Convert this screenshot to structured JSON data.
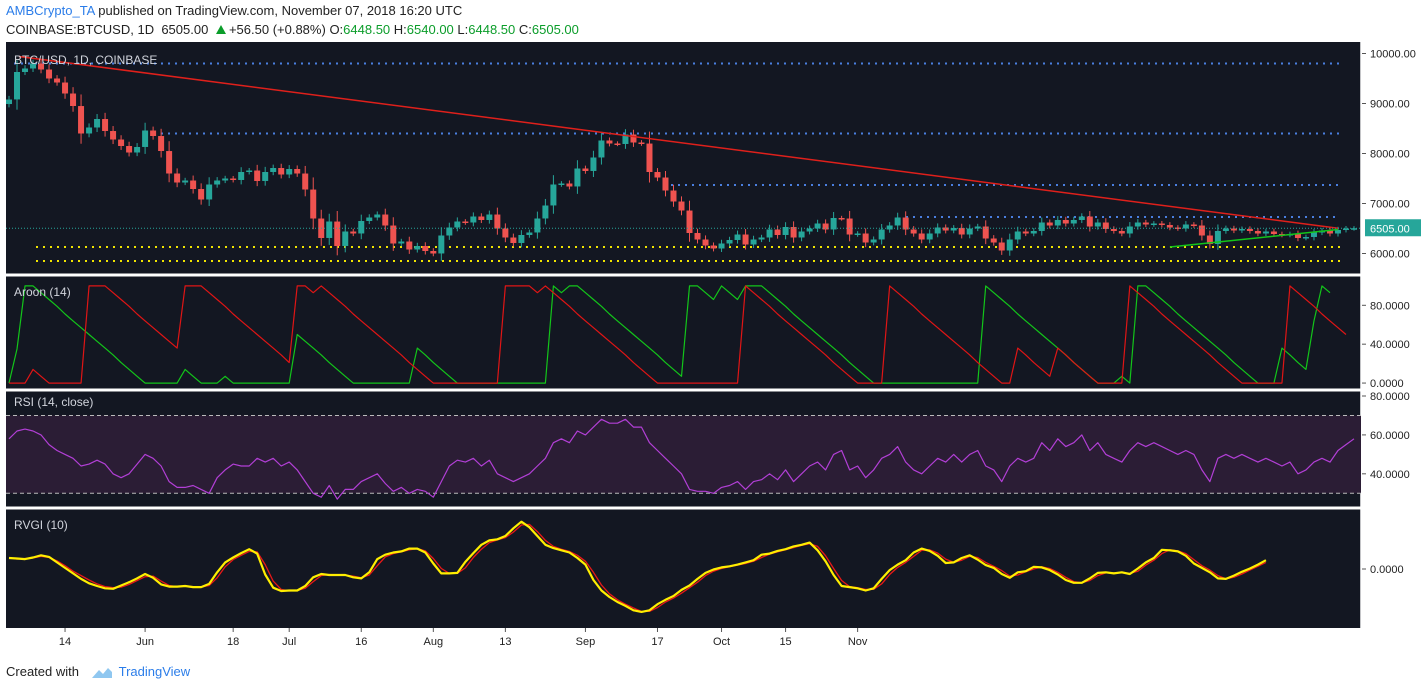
{
  "header": {
    "author": "AMBCrypto_TA",
    "published": "published on TradingView.com, November 07, 2018 16:20 UTC",
    "symbol": "COINBASE:BTCUSD, 1D",
    "last": "6505.00",
    "change": "+56.50 (+0.88%)",
    "o_label": "O:",
    "o_value": "6448.50",
    "h_label": "H:",
    "h_value": "6540.00",
    "l_label": "L:",
    "l_value": "6448.50",
    "c_label": "C:",
    "c_value": "6505.00"
  },
  "footer": {
    "created_with": "Created with",
    "brand": "TradingView",
    "logo_icon": "tradingview-logo-icon"
  },
  "colors": {
    "bull": "#26a69a",
    "bear": "#ef5350",
    "trend": "#e0201b",
    "support": "#f0e400",
    "resistance": "#4a7fe0",
    "aroon_up": "#13c51a",
    "aroon_down": "#e01515",
    "rsi": "#b23fd6",
    "rsi_band": "#2b1d35",
    "rvgi": "#ffee00",
    "rvgi_signal": "#e81818",
    "bg": "#131722"
  },
  "chart_data": [
    {
      "type": "candlestick",
      "title": "BTC/USD, 1D, COINBASE",
      "ylim": [
        5650,
        10150
      ],
      "yticks": [
        "10000.00",
        "9000.00",
        "8000.00",
        "7000.00",
        "6000.00"
      ],
      "ytick_values": [
        10000,
        9000,
        8000,
        7000,
        6000
      ],
      "price_label": "6505.00",
      "price_value": 6505,
      "x_ticks": [
        "14",
        "Jun",
        "18",
        "Jul",
        "16",
        "Aug",
        "13",
        "Sep",
        "17",
        "Oct",
        "15",
        "Nov"
      ],
      "x_tick_index": [
        7,
        17,
        28,
        35,
        44,
        53,
        62,
        72,
        81,
        89,
        97,
        106
      ],
      "closes": [
        9080,
        9630,
        9700,
        9800,
        9680,
        9500,
        9420,
        9200,
        8950,
        8400,
        8520,
        8690,
        8450,
        8280,
        8150,
        8020,
        8130,
        8460,
        8350,
        8050,
        7600,
        7420,
        7460,
        7290,
        7080,
        7380,
        7460,
        7500,
        7470,
        7630,
        7660,
        7450,
        7630,
        7710,
        7580,
        7690,
        7600,
        7280,
        6700,
        6310,
        6640,
        6150,
        6440,
        6400,
        6650,
        6720,
        6780,
        6560,
        6200,
        6240,
        6080,
        6150,
        6050,
        6000,
        6360,
        6520,
        6640,
        6620,
        6740,
        6670,
        6780,
        6500,
        6320,
        6210,
        6370,
        6420,
        6700,
        6960,
        7380,
        7400,
        7340,
        7700,
        7650,
        7920,
        8260,
        8200,
        8190,
        8380,
        8220,
        8200,
        7630,
        7520,
        7260,
        7040,
        6860,
        6410,
        6280,
        6160,
        6100,
        6200,
        6270,
        6380,
        6180,
        6280,
        6320,
        6480,
        6370,
        6530,
        6320,
        6440,
        6500,
        6600,
        6480,
        6710,
        6700,
        6380,
        6400,
        6220,
        6280,
        6480,
        6560,
        6720,
        6480,
        6400,
        6280,
        6400,
        6520,
        6460,
        6510,
        6380,
        6500,
        6540,
        6300,
        6220,
        6060,
        6280,
        6440,
        6400,
        6450,
        6620,
        6560,
        6670,
        6600,
        6670,
        6740,
        6540,
        6620,
        6490,
        6450,
        6400,
        6540,
        6620,
        6580,
        6600,
        6570,
        6520,
        6500,
        6580,
        6560,
        6360,
        6190,
        6450,
        6500,
        6460,
        6490,
        6450,
        6400,
        6440,
        6390,
        6370,
        6390,
        6310,
        6330,
        6420,
        6460,
        6400,
        6470,
        6500,
        6505
      ],
      "trend_line": [
        {
          "x": 0,
          "y": 9900
        },
        {
          "x": 166,
          "y": 6505
        }
      ],
      "resistance_levels": [
        9800,
        8400,
        7370,
        6730
      ],
      "support_levels": [
        6130,
        5850
      ]
    },
    {
      "type": "line",
      "title": "Aroon (14)",
      "ylim": [
        -2,
        105
      ],
      "yticks": [
        "80.0000",
        "40.0000",
        "0.0000"
      ],
      "ytick_values": [
        80,
        40,
        0
      ],
      "series": [
        {
          "name": "up",
          "values": [
            0,
            35,
            100,
            100,
            93,
            86,
            79,
            71,
            64,
            57,
            50,
            43,
            36,
            29,
            21,
            14,
            7,
            0,
            0,
            0,
            0,
            0,
            14,
            7,
            0,
            0,
            0,
            7,
            0,
            0,
            0,
            0,
            0,
            0,
            0,
            0,
            50,
            43,
            36,
            29,
            21,
            14,
            7,
            0,
            0,
            0,
            0,
            0,
            0,
            0,
            0,
            36,
            29,
            21,
            14,
            7,
            0,
            0,
            0,
            0,
            0,
            0,
            0,
            0,
            0,
            0,
            0,
            0,
            100,
            93,
            100,
            100,
            93,
            86,
            79,
            71,
            64,
            57,
            50,
            43,
            36,
            29,
            21,
            14,
            7,
            100,
            100,
            93,
            86,
            100,
            93,
            86,
            100,
            100,
            100,
            93,
            86,
            79,
            71,
            64,
            57,
            50,
            43,
            36,
            29,
            21,
            14,
            7,
            0,
            0,
            0,
            0,
            0,
            0,
            0,
            0,
            0,
            0,
            0,
            0,
            0,
            0,
            100,
            93,
            86,
            79,
            71,
            64,
            57,
            50,
            43,
            36,
            29,
            21,
            14,
            7,
            0,
            0,
            0,
            7,
            0,
            100,
            100,
            93,
            86,
            79,
            71,
            64,
            57,
            50,
            43,
            36,
            29,
            21,
            14,
            7,
            0,
            0,
            0,
            36,
            29,
            21,
            14,
            64,
            100,
            93
          ]
        },
        {
          "name": "down",
          "values": [
            0,
            0,
            0,
            14,
            7,
            0,
            0,
            0,
            0,
            0,
            100,
            100,
            100,
            93,
            86,
            79,
            71,
            64,
            57,
            50,
            43,
            36,
            100,
            100,
            100,
            93,
            86,
            79,
            71,
            64,
            57,
            50,
            43,
            36,
            29,
            21,
            100,
            100,
            93,
            100,
            93,
            86,
            79,
            71,
            64,
            57,
            50,
            43,
            36,
            29,
            21,
            14,
            7,
            0,
            0,
            0,
            0,
            0,
            0,
            0,
            0,
            0,
            100,
            100,
            100,
            100,
            93,
            100,
            93,
            86,
            79,
            71,
            64,
            57,
            50,
            43,
            36,
            29,
            21,
            14,
            7,
            0,
            0,
            0,
            0,
            0,
            0,
            0,
            0,
            0,
            0,
            0,
            100,
            93,
            86,
            79,
            71,
            64,
            57,
            50,
            43,
            36,
            29,
            21,
            14,
            7,
            0,
            0,
            0,
            0,
            100,
            93,
            86,
            79,
            71,
            64,
            57,
            50,
            43,
            36,
            29,
            21,
            14,
            7,
            0,
            0,
            36,
            29,
            21,
            14,
            7,
            36,
            29,
            21,
            14,
            7,
            0,
            0,
            0,
            0,
            100,
            93,
            86,
            79,
            71,
            64,
            57,
            50,
            43,
            36,
            29,
            21,
            14,
            7,
            0,
            0,
            0,
            0,
            0,
            0,
            100,
            93,
            86,
            79,
            71,
            64,
            57,
            50
          ]
        }
      ]
    },
    {
      "type": "line",
      "title": "RSI (14, close)",
      "ylim": [
        25,
        80
      ],
      "yticks": [
        "80.0000",
        "60.0000",
        "40.0000"
      ],
      "ytick_values": [
        80,
        60,
        40
      ],
      "band": [
        30,
        70
      ],
      "series": [
        {
          "name": "RSI",
          "values": [
            58,
            62,
            63,
            62,
            60,
            55,
            52,
            50,
            48,
            44,
            45,
            47,
            45,
            40,
            38,
            40,
            45,
            50,
            48,
            44,
            36,
            33,
            33,
            34,
            32,
            30,
            38,
            42,
            45,
            44,
            44,
            48,
            46,
            48,
            44,
            46,
            42,
            36,
            30,
            28,
            34,
            27,
            32,
            32,
            36,
            38,
            40,
            35,
            31,
            33,
            30,
            32,
            31,
            28,
            36,
            44,
            47,
            46,
            48,
            44,
            47,
            40,
            38,
            36,
            38,
            40,
            44,
            48,
            56,
            58,
            56,
            62,
            60,
            64,
            68,
            66,
            66,
            68,
            64,
            64,
            56,
            52,
            48,
            44,
            40,
            32,
            31,
            31,
            30,
            33,
            34,
            36,
            32,
            36,
            37,
            40,
            37,
            42,
            36,
            40,
            44,
            46,
            42,
            50,
            52,
            42,
            44,
            38,
            42,
            48,
            50,
            54,
            46,
            42,
            40,
            44,
            48,
            46,
            50,
            46,
            50,
            52,
            44,
            42,
            36,
            44,
            48,
            46,
            48,
            56,
            52,
            58,
            54,
            56,
            60,
            52,
            56,
            50,
            48,
            46,
            52,
            56,
            54,
            56,
            54,
            52,
            50,
            52,
            50,
            42,
            36,
            48,
            50,
            48,
            50,
            48,
            46,
            48,
            46,
            44,
            46,
            40,
            42,
            46,
            48,
            46,
            52,
            55,
            58
          ]
        }
      ]
    },
    {
      "type": "line",
      "title": "RVGI (10)",
      "ylim": [
        -1,
        1
      ],
      "yticks": [
        "0.0000"
      ],
      "ytick_values": [
        0
      ],
      "series": [
        {
          "name": "RVGI",
          "values": [
            0.2,
            0.19,
            0.18,
            0.21,
            0.25,
            0.22,
            0.12,
            0.02,
            -0.08,
            -0.18,
            -0.26,
            -0.31,
            -0.35,
            -0.36,
            -0.3,
            -0.24,
            -0.17,
            -0.09,
            -0.16,
            -0.28,
            -0.32,
            -0.32,
            -0.31,
            -0.33,
            -0.33,
            -0.27,
            -0.06,
            0.12,
            0.21,
            0.29,
            0.36,
            0.28,
            -0.1,
            -0.34,
            -0.4,
            -0.39,
            -0.39,
            -0.31,
            -0.15,
            -0.09,
            -0.11,
            -0.11,
            -0.11,
            -0.15,
            -0.17,
            -0.06,
            0.18,
            0.26,
            0.3,
            0.32,
            0.37,
            0.37,
            0.3,
            0.1,
            -0.08,
            -0.08,
            -0.07,
            0.13,
            0.29,
            0.44,
            0.52,
            0.54,
            0.6,
            0.74,
            0.86,
            0.76,
            0.6,
            0.44,
            0.38,
            0.34,
            0.3,
            0.2,
            0.08,
            -0.2,
            -0.39,
            -0.51,
            -0.6,
            -0.67,
            -0.75,
            -0.78,
            -0.75,
            -0.64,
            -0.56,
            -0.49,
            -0.38,
            -0.3,
            -0.18,
            -0.07,
            -0.01,
            0.03,
            0.05,
            0.08,
            0.12,
            0.16,
            0.26,
            0.28,
            0.33,
            0.36,
            0.41,
            0.44,
            0.48,
            0.34,
            0.14,
            -0.11,
            -0.31,
            -0.33,
            -0.35,
            -0.39,
            -0.35,
            -0.18,
            -0.02,
            0.08,
            0.16,
            0.3,
            0.37,
            0.33,
            0.24,
            0.11,
            0.12,
            0.2,
            0.25,
            0.17,
            0.07,
            0.02,
            -0.09,
            -0.16,
            -0.06,
            -0.04,
            0.04,
            0.03,
            -0.02,
            -0.1,
            -0.2,
            -0.25,
            -0.25,
            -0.17,
            -0.07,
            -0.06,
            -0.08,
            -0.06,
            -0.09,
            0.01,
            0.12,
            0.2,
            0.35,
            0.34,
            0.32,
            0.24,
            0.1,
            0.02,
            -0.06,
            -0.17,
            -0.18,
            -0.12,
            -0.05,
            0.01,
            0.08,
            0.16
          ]
        },
        {
          "name": "Signal",
          "values": [
            0.21,
            0.18,
            0.19,
            0.2,
            0.23,
            0.21,
            0.15,
            0.06,
            -0.04,
            -0.12,
            -0.2,
            -0.27,
            -0.32,
            -0.34,
            -0.33,
            -0.28,
            -0.21,
            -0.14,
            -0.13,
            -0.22,
            -0.3,
            -0.32,
            -0.31,
            -0.32,
            -0.33,
            -0.3,
            -0.16,
            0.04,
            0.17,
            0.25,
            0.32,
            0.31,
            0.08,
            -0.22,
            -0.37,
            -0.4,
            -0.39,
            -0.35,
            -0.23,
            -0.12,
            -0.1,
            -0.11,
            -0.11,
            -0.13,
            -0.16,
            -0.11,
            0.06,
            0.22,
            0.28,
            0.31,
            0.35,
            0.37,
            0.33,
            0.19,
            0.01,
            -0.08,
            -0.08,
            0.02,
            0.21,
            0.36,
            0.48,
            0.53,
            0.57,
            0.67,
            0.8,
            0.81,
            0.68,
            0.52,
            0.41,
            0.36,
            0.32,
            0.25,
            0.14,
            -0.06,
            -0.29,
            -0.45,
            -0.56,
            -0.64,
            -0.71,
            -0.77,
            -0.77,
            -0.7,
            -0.6,
            -0.53,
            -0.44,
            -0.34,
            -0.24,
            -0.12,
            -0.04,
            0.01,
            0.04,
            0.07,
            0.1,
            0.14,
            0.21,
            0.27,
            0.31,
            0.35,
            0.39,
            0.43,
            0.46,
            0.41,
            0.24,
            0.01,
            -0.21,
            -0.32,
            -0.34,
            -0.37,
            -0.37,
            -0.27,
            -0.1,
            0.03,
            0.12,
            0.23,
            0.34,
            0.35,
            0.29,
            0.18,
            0.12,
            0.16,
            0.23,
            0.21,
            0.12,
            0.05,
            -0.03,
            -0.13,
            -0.11,
            -0.05,
            0,
            0.04,
            0.01,
            -0.06,
            -0.15,
            -0.23,
            -0.25,
            -0.21,
            -0.12,
            -0.07,
            -0.07,
            -0.07,
            -0.08,
            -0.04,
            0.07,
            0.16,
            0.28,
            0.35,
            0.33,
            0.28,
            0.17,
            0.06,
            -0.02,
            -0.12,
            -0.18,
            -0.15,
            -0.09,
            -0.02,
            0.05,
            0.12
          ]
        }
      ]
    }
  ]
}
